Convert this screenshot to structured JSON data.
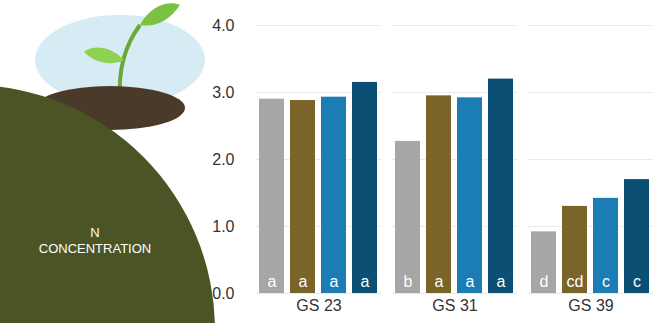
{
  "chart_data": {
    "type": "bar",
    "title": "N CONCENTRATION",
    "categories": [
      "GS 23",
      "GS 31",
      "GS 39"
    ],
    "series": [
      {
        "color": "#a6a6a6",
        "values": [
          2.9,
          2.27,
          0.92
        ],
        "letters": [
          "a",
          "b",
          "d"
        ]
      },
      {
        "color": "#7b6428",
        "values": [
          2.88,
          2.95,
          1.3
        ],
        "letters": [
          "a",
          "a",
          "cd"
        ]
      },
      {
        "color": "#1b7db4",
        "values": [
          2.93,
          2.92,
          1.42
        ],
        "letters": [
          "a",
          "a",
          "c"
        ]
      },
      {
        "color": "#0b4f74",
        "values": [
          3.15,
          3.2,
          1.7
        ],
        "letters": [
          "a",
          "a",
          "c"
        ]
      }
    ],
    "ylim": [
      0,
      4
    ],
    "yticks": [
      0,
      1,
      2,
      3,
      4
    ],
    "grid": true
  }
}
